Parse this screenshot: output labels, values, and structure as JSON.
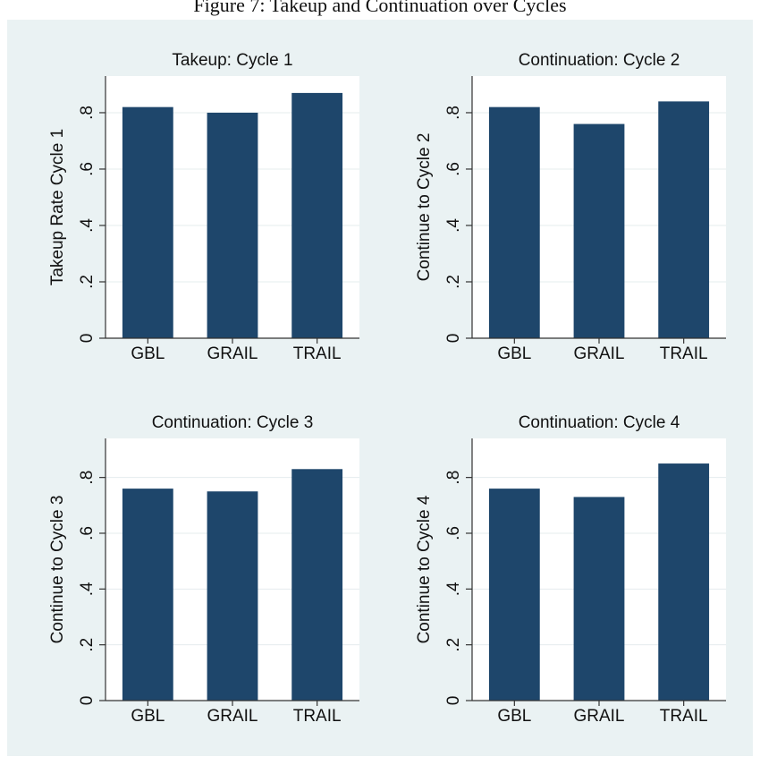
{
  "figure_title": "Figure 7: Takeup and Continuation over Cycles",
  "chart_data": [
    {
      "type": "bar",
      "title": "Takeup: Cycle 1",
      "ylabel": "Takeup Rate Cycle 1",
      "categories": [
        "GBL",
        "GRAIL",
        "TRAIL"
      ],
      "values": [
        0.82,
        0.8,
        0.87
      ],
      "color": "#1e466b",
      "ylim": [
        0,
        0.93
      ],
      "yticks": [
        0,
        {
          "value": 0.2,
          "label": ".2"
        },
        {
          "value": 0.4,
          "label": ".4"
        },
        {
          "value": 0.6,
          "label": ".6"
        },
        {
          "value": 0.8,
          "label": ".8"
        }
      ],
      "grid": true
    },
    {
      "type": "bar",
      "title": "Continuation: Cycle 2",
      "ylabel": "Continue to Cycle 2",
      "categories": [
        "GBL",
        "GRAIL",
        "TRAIL"
      ],
      "values": [
        0.82,
        0.76,
        0.84
      ],
      "color": "#1e466b",
      "ylim": [
        0,
        0.93
      ],
      "yticks": [
        0,
        {
          "value": 0.2,
          "label": ".2"
        },
        {
          "value": 0.4,
          "label": ".4"
        },
        {
          "value": 0.6,
          "label": ".6"
        },
        {
          "value": 0.8,
          "label": ".8"
        }
      ],
      "grid": true
    },
    {
      "type": "bar",
      "title": "Continuation: Cycle 3",
      "ylabel": "Continue to Cycle 3",
      "categories": [
        "GBL",
        "GRAIL",
        "TRAIL"
      ],
      "values": [
        0.76,
        0.75,
        0.83
      ],
      "color": "#1e466b",
      "ylim": [
        0,
        0.94
      ],
      "yticks": [
        0,
        {
          "value": 0.2,
          "label": ".2"
        },
        {
          "value": 0.4,
          "label": ".4"
        },
        {
          "value": 0.6,
          "label": ".6"
        },
        {
          "value": 0.8,
          "label": ".8"
        }
      ],
      "grid": true
    },
    {
      "type": "bar",
      "title": "Continuation: Cycle 4",
      "ylabel": "Continue to Cycle 4",
      "categories": [
        "GBL",
        "GRAIL",
        "TRAIL"
      ],
      "values": [
        0.76,
        0.73,
        0.85
      ],
      "color": "#1e466b",
      "ylim": [
        0,
        0.94
      ],
      "yticks": [
        0,
        {
          "value": 0.2,
          "label": ".2"
        },
        {
          "value": 0.4,
          "label": ".4"
        },
        {
          "value": 0.6,
          "label": ".6"
        },
        {
          "value": 0.8,
          "label": ".8"
        }
      ],
      "grid": true
    }
  ]
}
